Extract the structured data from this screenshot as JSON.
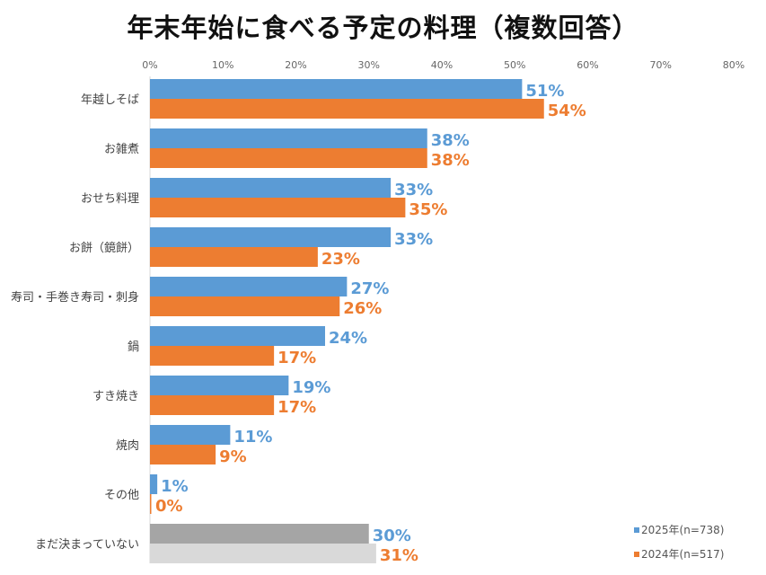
{
  "chart_data": {
    "type": "bar",
    "orientation": "horizontal",
    "title": "年末年始に食べる予定の料理（複数回答）",
    "categories": [
      "年越しそば",
      "お雑煮",
      "おせち料理",
      "お餅（鏡餅）",
      "寿司・手巻き寿司・刺身",
      "鍋",
      "すき焼き",
      "焼肉",
      "その他",
      "まだ決まっていない"
    ],
    "series": [
      {
        "name": "2025年(n=738)",
        "color": "#5b9bd5",
        "values": [
          51,
          38,
          33,
          33,
          27,
          24,
          19,
          11,
          1,
          30
        ]
      },
      {
        "name": "2024年(n=517)",
        "color": "#ed7d31",
        "values": [
          54,
          38,
          35,
          23,
          26,
          17,
          17,
          9,
          0,
          31
        ]
      }
    ],
    "highlight_last_category_colors": [
      "#a5a5a5",
      "#d9d9d9"
    ],
    "xlim": [
      0,
      80
    ],
    "xticks": [
      "0%",
      "10%",
      "20%",
      "30%",
      "40%",
      "50%",
      "60%",
      "70%",
      "80%"
    ],
    "x_axis_position": "top",
    "grid": false,
    "legend": "bottom-right",
    "data_label_suffix": "%"
  }
}
